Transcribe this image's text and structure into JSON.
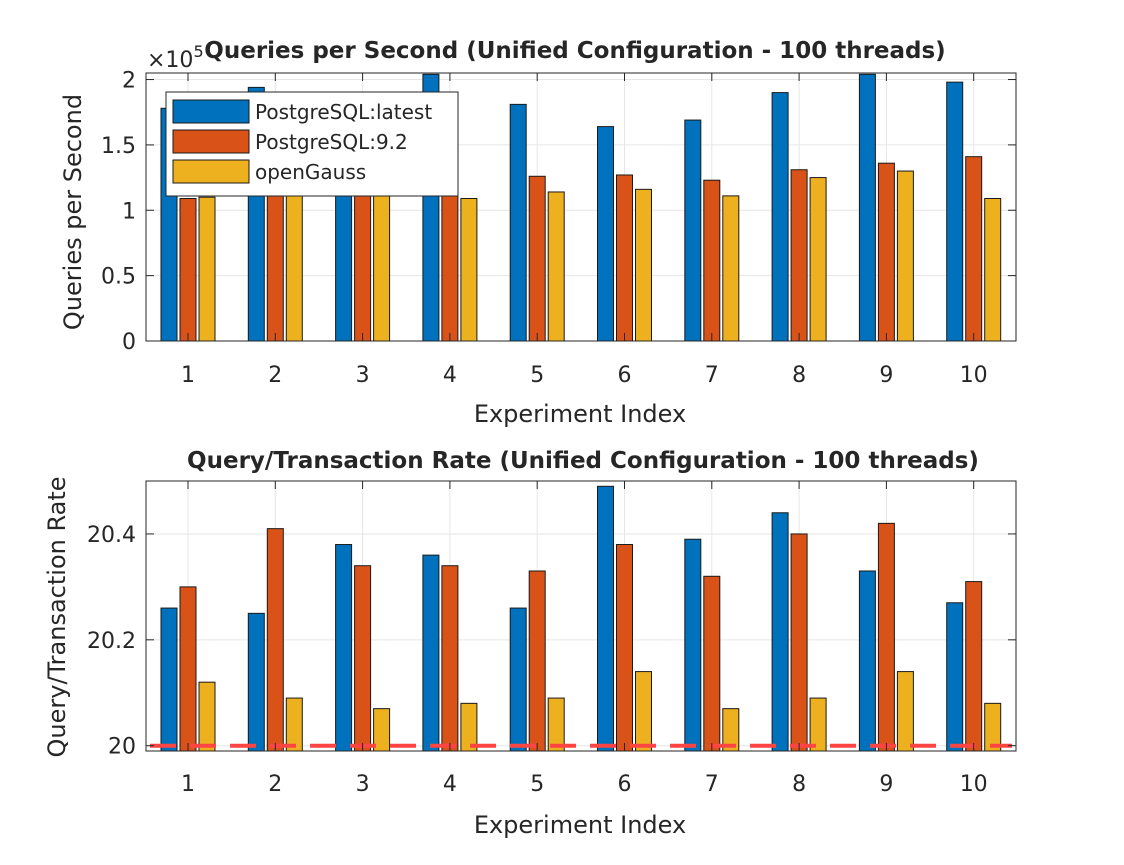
{
  "chart_data": [
    {
      "type": "bar",
      "title": "Queries per Second (Unified Configuration - 100 threads)",
      "xlabel": "Experiment Index",
      "ylabel": "Queries per Second",
      "exponent_label": "×10",
      "exponent_power": "5",
      "categories": [
        "1",
        "2",
        "3",
        "4",
        "5",
        "6",
        "7",
        "8",
        "9",
        "10"
      ],
      "y_ticks": [
        "0",
        "0.5",
        "1",
        "1.5",
        "2"
      ],
      "ylim": [
        0,
        2.05
      ],
      "grid": true,
      "legend_position": "top-left",
      "series": [
        {
          "name": "PostgreSQL:latest",
          "color": "#0072BD",
          "values": [
            1.78,
            1.94,
            1.77,
            2.04,
            1.81,
            1.64,
            1.69,
            1.9,
            2.04,
            1.98
          ]
        },
        {
          "name": "PostgreSQL:9.2",
          "color": "#D95319",
          "values": [
            1.09,
            1.2,
            1.13,
            1.14,
            1.26,
            1.27,
            1.23,
            1.31,
            1.36,
            1.41
          ]
        },
        {
          "name": "openGauss",
          "color": "#EDB120",
          "values": [
            1.1,
            1.19,
            1.12,
            1.09,
            1.14,
            1.16,
            1.11,
            1.25,
            1.3,
            1.09
          ]
        }
      ]
    },
    {
      "type": "bar",
      "title": "Query/Transaction Rate (Unified Configuration - 100 threads)",
      "xlabel": "Experiment Index",
      "ylabel": "Query/Transaction Rate",
      "categories": [
        "1",
        "2",
        "3",
        "4",
        "5",
        "6",
        "7",
        "8",
        "9",
        "10"
      ],
      "y_ticks": [
        "20",
        "20.2",
        "20.4"
      ],
      "ylim": [
        19.99,
        20.5
      ],
      "grid": true,
      "reference_line": {
        "value": 20,
        "color": "#FF4444",
        "style": "dashed"
      },
      "series": [
        {
          "name": "PostgreSQL:latest",
          "color": "#0072BD",
          "values": [
            20.26,
            20.25,
            20.38,
            20.36,
            20.26,
            20.49,
            20.39,
            20.44,
            20.33,
            20.27
          ]
        },
        {
          "name": "PostgreSQL:9.2",
          "color": "#D95319",
          "values": [
            20.3,
            20.41,
            20.34,
            20.34,
            20.33,
            20.38,
            20.32,
            20.4,
            20.42,
            20.31
          ]
        },
        {
          "name": "openGauss",
          "color": "#EDB120",
          "values": [
            20.12,
            20.09,
            20.07,
            20.08,
            20.09,
            20.14,
            20.07,
            20.09,
            20.14,
            20.08
          ]
        }
      ]
    }
  ]
}
